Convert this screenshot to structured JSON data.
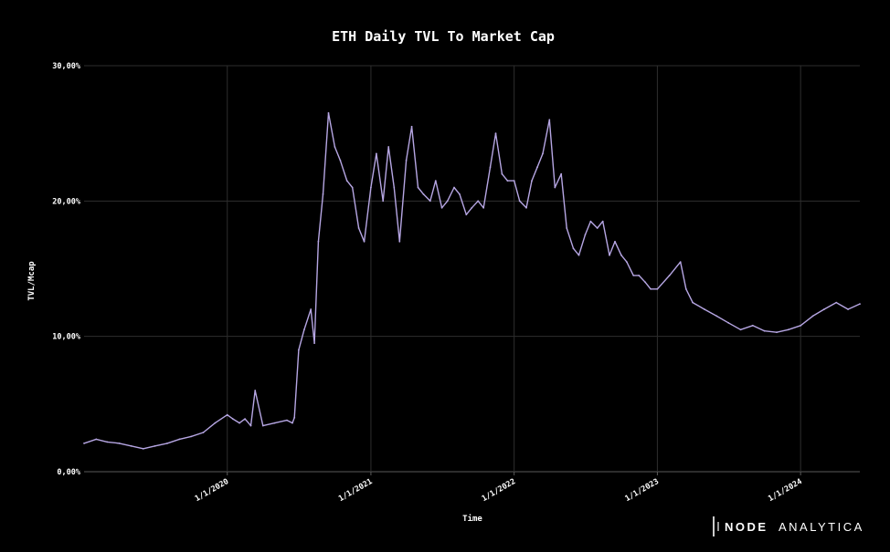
{
  "brand": {
    "word1": "NODE",
    "word2": "ANALYTICA",
    "logo_icon": "node-analytica-logo"
  },
  "colors": {
    "background": "#000000",
    "line": "#b6a6e3",
    "grid": "#2e2e2e",
    "text": "#ffffff"
  },
  "chart_data": {
    "type": "line",
    "title": "ETH Daily TVL To Market Cap",
    "xlabel": "Time",
    "ylabel": "TVL/Mcap",
    "x_range": [
      "2019-01-01",
      "2024-05-31"
    ],
    "ylim": [
      0,
      30
    ],
    "y_ticks": [
      0,
      10,
      20,
      30
    ],
    "y_tick_labels": [
      "0,00%",
      "10,00%",
      "20,00%",
      "30,00%"
    ],
    "x_ticks": [
      "2020-01-01",
      "2021-01-01",
      "2022-01-01",
      "2023-01-01",
      "2024-01-01"
    ],
    "x_tick_labels": [
      "1/1/2020",
      "1/1/2021",
      "1/1/2022",
      "1/1/2023",
      "1/1/2024"
    ],
    "grid": true,
    "legend": "none",
    "series": [
      {
        "values_unit": "percent",
        "x": [
          "2019-01-01",
          "2019-02-01",
          "2019-03-01",
          "2019-04-01",
          "2019-05-01",
          "2019-06-01",
          "2019-07-01",
          "2019-08-01",
          "2019-09-01",
          "2019-10-01",
          "2019-11-01",
          "2019-12-01",
          "2020-01-01",
          "2020-01-15",
          "2020-02-01",
          "2020-02-15",
          "2020-03-01",
          "2020-03-12",
          "2020-04-01",
          "2020-05-01",
          "2020-06-01",
          "2020-06-15",
          "2020-06-20",
          "2020-07-01",
          "2020-07-15",
          "2020-08-01",
          "2020-08-10",
          "2020-08-20",
          "2020-09-01",
          "2020-09-15",
          "2020-10-01",
          "2020-10-15",
          "2020-11-01",
          "2020-11-15",
          "2020-12-01",
          "2020-12-15",
          "2021-01-01",
          "2021-01-15",
          "2021-02-01",
          "2021-02-15",
          "2021-03-01",
          "2021-03-15",
          "2021-04-01",
          "2021-04-15",
          "2021-05-01",
          "2021-05-15",
          "2021-06-01",
          "2021-06-15",
          "2021-07-01",
          "2021-07-15",
          "2021-08-01",
          "2021-08-15",
          "2021-09-01",
          "2021-09-15",
          "2021-10-01",
          "2021-10-15",
          "2021-11-01",
          "2021-11-15",
          "2021-12-01",
          "2021-12-15",
          "2022-01-01",
          "2022-01-15",
          "2022-02-01",
          "2022-02-15",
          "2022-03-01",
          "2022-03-15",
          "2022-04-01",
          "2022-04-15",
          "2022-05-01",
          "2022-05-15",
          "2022-06-01",
          "2022-06-15",
          "2022-07-01",
          "2022-07-15",
          "2022-08-01",
          "2022-08-15",
          "2022-09-01",
          "2022-09-15",
          "2022-10-01",
          "2022-10-15",
          "2022-11-01",
          "2022-11-15",
          "2022-12-01",
          "2022-12-15",
          "2023-01-01",
          "2023-02-01",
          "2023-03-01",
          "2023-03-15",
          "2023-04-01",
          "2023-05-01",
          "2023-06-01",
          "2023-07-01",
          "2023-08-01",
          "2023-09-01",
          "2023-10-01",
          "2023-11-01",
          "2023-12-01",
          "2024-01-01",
          "2024-02-01",
          "2024-03-01",
          "2024-04-01",
          "2024-05-01",
          "2024-05-31"
        ],
        "values": [
          2.1,
          2.4,
          2.2,
          2.1,
          1.9,
          1.7,
          1.9,
          2.1,
          2.4,
          2.6,
          2.9,
          3.6,
          4.2,
          3.9,
          3.6,
          3.9,
          3.4,
          6.0,
          3.4,
          3.6,
          3.8,
          3.6,
          4.0,
          9.0,
          10.5,
          12.0,
          9.5,
          17.0,
          20.5,
          26.5,
          24.0,
          23.0,
          21.5,
          21.0,
          18.0,
          17.0,
          21.0,
          23.5,
          20.0,
          24.0,
          21.0,
          17.0,
          23.0,
          25.5,
          21.0,
          20.5,
          20.0,
          21.5,
          19.5,
          20.0,
          21.0,
          20.5,
          19.0,
          19.5,
          20.0,
          19.5,
          22.5,
          25.0,
          22.0,
          21.5,
          21.5,
          20.0,
          19.5,
          21.5,
          22.5,
          23.5,
          26.0,
          21.0,
          22.0,
          18.0,
          16.5,
          16.0,
          17.5,
          18.5,
          18.0,
          18.5,
          16.0,
          17.0,
          16.0,
          15.5,
          14.5,
          14.5,
          14.0,
          13.5,
          13.5,
          14.5,
          15.5,
          13.5,
          12.5,
          12.0,
          11.5,
          11.0,
          10.5,
          10.8,
          10.4,
          10.3,
          10.5,
          10.8,
          11.5,
          12.0,
          12.5,
          12.0,
          12.4
        ]
      }
    ]
  }
}
